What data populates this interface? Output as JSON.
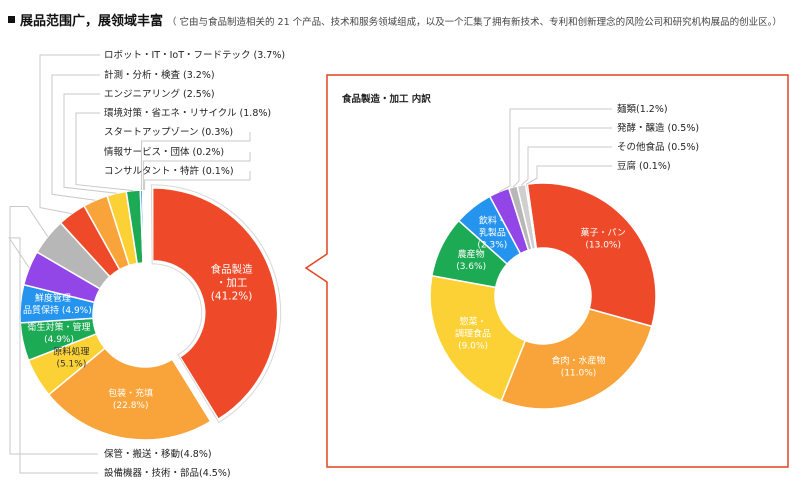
{
  "header": {
    "title": "展品范围广，展领域丰富",
    "subtitle": "（ 它由与食品制造相关的 21 个产品、技术和服务领域组成，以及一个汇集了拥有新技术、专利和创新理念的风险公司和研究机构展品的创业区。）"
  },
  "chart_data": [
    {
      "type": "pie",
      "variant": "donut",
      "title": "",
      "slices": [
        {
          "label": "食品製造・加工",
          "value": 41.2,
          "color": "#ee4928",
          "display": [
            "食品製造",
            "・加工",
            "(41.2%)"
          ]
        },
        {
          "label": "包装・充填",
          "value": 22.8,
          "color": "#f9a43a",
          "display": [
            "包装・充填",
            "(22.8%)"
          ]
        },
        {
          "label": "原料処理",
          "value": 5.1,
          "color": "#fcd135",
          "display": [
            "原料処理",
            "(5.1%)"
          ]
        },
        {
          "label": "衛生対策・管理",
          "value": 4.9,
          "color": "#1daa55",
          "display": [
            "衛生対策・管理",
            "(4.9%)"
          ]
        },
        {
          "label": "鮮度管理・品質保持",
          "value": 4.9,
          "color": "#2594ee",
          "display": [
            "鮮度管理・",
            "品質保持 (4.9%)"
          ]
        },
        {
          "label": "設備機器・技術・部品",
          "value": 4.5,
          "color": "#9346e8",
          "display": [
            "設備機器・技術・部品(4.5%)"
          ]
        },
        {
          "label": "保管・搬送・移動",
          "value": 4.8,
          "color": "#b7b7b7",
          "display": [
            "保管・搬送・移動(4.8%)"
          ]
        },
        {
          "label": "ロボット・IT・IoT・フードテック",
          "value": 3.7,
          "color": "#ee4928",
          "display": [
            "ロボット・IT・IoT・フードテック (3.7%)"
          ]
        },
        {
          "label": "計測・分析・検査",
          "value": 3.2,
          "color": "#f9a43a",
          "display": [
            "計測・分析・検査 (3.2%)"
          ]
        },
        {
          "label": "エンジニアリング",
          "value": 2.5,
          "color": "#fcd135",
          "display": [
            "エンジニアリング (2.5%)"
          ]
        },
        {
          "label": "環境対策・省エネ・リサイクル",
          "value": 1.8,
          "color": "#1daa55",
          "display": [
            "環境対策・省エネ・リサイクル (1.8%)"
          ]
        },
        {
          "label": "スタートアップゾーン",
          "value": 0.3,
          "color": "#2594ee",
          "display": [
            "スタートアップゾーン (0.3%)"
          ]
        },
        {
          "label": "情報サービス・団体",
          "value": 0.2,
          "color": "#9346e8",
          "display": [
            "情報サービス・団体 (0.2%)"
          ]
        },
        {
          "label": "コンサルタント・特許",
          "value": 0.1,
          "color": "#b7b7b7",
          "display": [
            "コンサルタント・特許 (0.1%)"
          ]
        }
      ]
    },
    {
      "type": "pie",
      "variant": "donut",
      "title": "食品製造・加工 内訳",
      "slices": [
        {
          "label": "菓子・パン",
          "value": 13.0,
          "color": "#ee4928",
          "display": [
            "菓子・パン",
            "(13.0%)"
          ]
        },
        {
          "label": "食肉・水産物",
          "value": 11.0,
          "color": "#f9a43a",
          "display": [
            "食肉・水産物",
            "(11.0%)"
          ]
        },
        {
          "label": "惣菜・調理食品",
          "value": 9.0,
          "color": "#fcd135",
          "display": [
            "惣菜・",
            "調理食品",
            "(9.0%)"
          ]
        },
        {
          "label": "農産物",
          "value": 3.6,
          "color": "#1daa55",
          "display": [
            "農産物",
            "(3.6%)"
          ]
        },
        {
          "label": "飲料・乳製品",
          "value": 2.3,
          "color": "#2594ee",
          "display": [
            "飲料・",
            "乳製品",
            "(2.3%)"
          ]
        },
        {
          "label": "麺類",
          "value": 1.2,
          "color": "#9346e8",
          "display": [
            "麺類(1.2%)"
          ]
        },
        {
          "label": "発酵・醸造",
          "value": 0.5,
          "color": "#b7b7b7",
          "display": [
            "発酵・醸造 (0.5%)"
          ]
        },
        {
          "label": "その他食品",
          "value": 0.5,
          "color": "#cfcfcf",
          "display": [
            "その他食品 (0.5%)"
          ]
        },
        {
          "label": "豆腐",
          "value": 0.1,
          "color": "#ee4928",
          "display": [
            "豆腐 (0.1%)"
          ]
        }
      ]
    }
  ]
}
